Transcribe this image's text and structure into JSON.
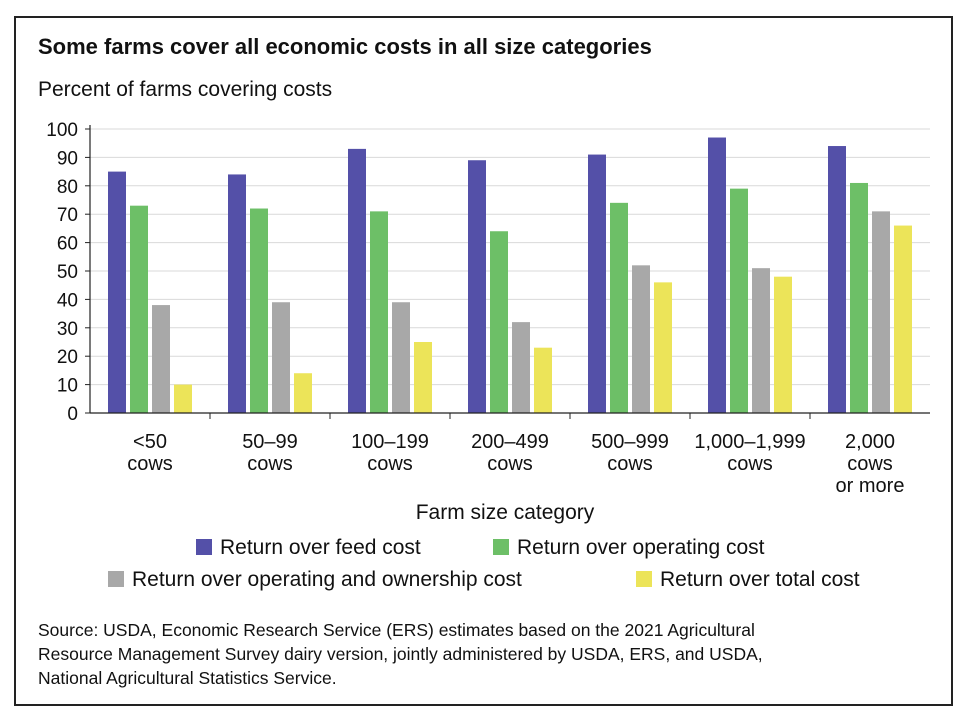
{
  "title": "Some farms cover all economic costs in all size categories",
  "subtitle": "Percent of farms covering costs",
  "source": "Source: USDA, Economic Research Service (ERS) estimates based on the 2021 Agricultural\nResource Management Survey dairy version, jointly administered by USDA, ERS, and USDA,\nNational Agricultural Statistics Service.",
  "chart_data": {
    "type": "bar",
    "title": "Some farms cover all economic costs in all size categories",
    "ylabel": "Percent of farms covering costs",
    "xlabel": "Farm size category",
    "ylim": [
      0,
      100
    ],
    "yticks": [
      0,
      10,
      20,
      30,
      40,
      50,
      60,
      70,
      80,
      90,
      100
    ],
    "grid": true,
    "legend_position": "bottom",
    "categories": [
      [
        "<50",
        "cows"
      ],
      [
        "50–99",
        "cows"
      ],
      [
        "100–199",
        "cows"
      ],
      [
        "200–499",
        "cows"
      ],
      [
        "500–999",
        "cows"
      ],
      [
        "1,000–1,999",
        "cows"
      ],
      [
        "2,000",
        "cows",
        "or more"
      ]
    ],
    "series": [
      {
        "name": "Return over feed cost",
        "color": "#5450a8",
        "values": [
          85,
          84,
          93,
          89,
          91,
          97,
          94
        ]
      },
      {
        "name": "Return over operating cost",
        "color": "#6dbf67",
        "values": [
          73,
          72,
          71,
          64,
          74,
          79,
          81
        ]
      },
      {
        "name": "Return over operating and ownership cost",
        "color": "#a8a8a8",
        "values": [
          38,
          39,
          39,
          32,
          52,
          51,
          71
        ]
      },
      {
        "name": "Return over total cost",
        "color": "#ece459",
        "values": [
          10,
          14,
          25,
          23,
          46,
          48,
          66
        ]
      }
    ]
  }
}
